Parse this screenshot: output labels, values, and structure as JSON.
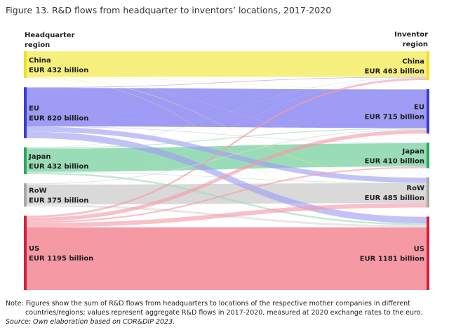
{
  "figure": {
    "title": "Figure 13. R&D flows from headquarter to inventors’ locations, 2017-2020",
    "left_header_line1": "Headquarter",
    "left_header_line2": "region",
    "right_header_line1": "Inventor",
    "right_header_line2": "region",
    "note_line1": "Note: Figures show the sum of R&D flows from headquarters to locations of the respective mother companies in different",
    "note_line2": "countries/regions; values represent aggregate R&D flows in 2017-2020, measured at 2020 exchange rates to the euro.",
    "source": "Source: Own elaboration based on COR&DIP 2023."
  },
  "chart_data": {
    "type": "sankey",
    "unit": "EUR billion",
    "sources": [
      {
        "name": "China",
        "label": "EUR 432 billion",
        "value": 432,
        "color": "#f7f07e",
        "bar": "#f0e020"
      },
      {
        "name": "EU",
        "label": "EUR 820 billion",
        "value": 820,
        "color": "#9e9cf4",
        "bar": "#3d3bd0"
      },
      {
        "name": "Japan",
        "label": "EUR 432 billion",
        "value": 432,
        "color": "#9bdcb8",
        "bar": "#2aa85f"
      },
      {
        "name": "RoW",
        "label": "EUR 375 billion",
        "value": 375,
        "color": "#d9d9d9",
        "bar": "#a8a8a8"
      },
      {
        "name": "US",
        "label": "EUR 1195 billion",
        "value": 1195,
        "color": "#f59aa5",
        "bar": "#d81e3a"
      }
    ],
    "targets": [
      {
        "name": "China",
        "label": "EUR 463 billion",
        "value": 463,
        "color": "#f7f07e",
        "bar": "#f0e020"
      },
      {
        "name": "EU",
        "label": "EUR 715 billion",
        "value": 715,
        "color": "#9e9cf4",
        "bar": "#3d3bd0"
      },
      {
        "name": "Japan",
        "label": "EUR 410 billion",
        "value": 410,
        "color": "#9bdcb8",
        "bar": "#2aa85f"
      },
      {
        "name": "RoW",
        "label": "EUR 485 billion",
        "value": 485,
        "color": "#d9d9d9",
        "bar": "#a8a8a8"
      },
      {
        "name": "US",
        "label": "EUR 1181 billion",
        "value": 1181,
        "color": "#f59aa5",
        "bar": "#d81e3a"
      }
    ],
    "flows": [
      {
        "from": "China",
        "to": "China",
        "value": 412
      },
      {
        "from": "China",
        "to": "EU",
        "value": 5
      },
      {
        "from": "China",
        "to": "Japan",
        "value": 3
      },
      {
        "from": "China",
        "to": "RoW",
        "value": 7
      },
      {
        "from": "China",
        "to": "US",
        "value": 5
      },
      {
        "from": "EU",
        "to": "China",
        "value": 10
      },
      {
        "from": "EU",
        "to": "EU",
        "value": 620
      },
      {
        "from": "EU",
        "to": "Japan",
        "value": 5
      },
      {
        "from": "EU",
        "to": "RoW",
        "value": 80
      },
      {
        "from": "EU",
        "to": "US",
        "value": 105
      },
      {
        "from": "Japan",
        "to": "China",
        "value": 6
      },
      {
        "from": "Japan",
        "to": "EU",
        "value": 15
      },
      {
        "from": "Japan",
        "to": "Japan",
        "value": 375
      },
      {
        "from": "Japan",
        "to": "RoW",
        "value": 8
      },
      {
        "from": "Japan",
        "to": "US",
        "value": 28
      },
      {
        "from": "RoW",
        "to": "China",
        "value": 3
      },
      {
        "from": "RoW",
        "to": "EU",
        "value": 15
      },
      {
        "from": "RoW",
        "to": "Japan",
        "value": 3
      },
      {
        "from": "RoW",
        "to": "RoW",
        "value": 320
      },
      {
        "from": "RoW",
        "to": "US",
        "value": 34
      },
      {
        "from": "US",
        "to": "China",
        "value": 32
      },
      {
        "from": "US",
        "to": "EU",
        "value": 60
      },
      {
        "from": "US",
        "to": "Japan",
        "value": 24
      },
      {
        "from": "US",
        "to": "RoW",
        "value": 70
      },
      {
        "from": "US",
        "to": "US",
        "value": 1009
      }
    ]
  }
}
